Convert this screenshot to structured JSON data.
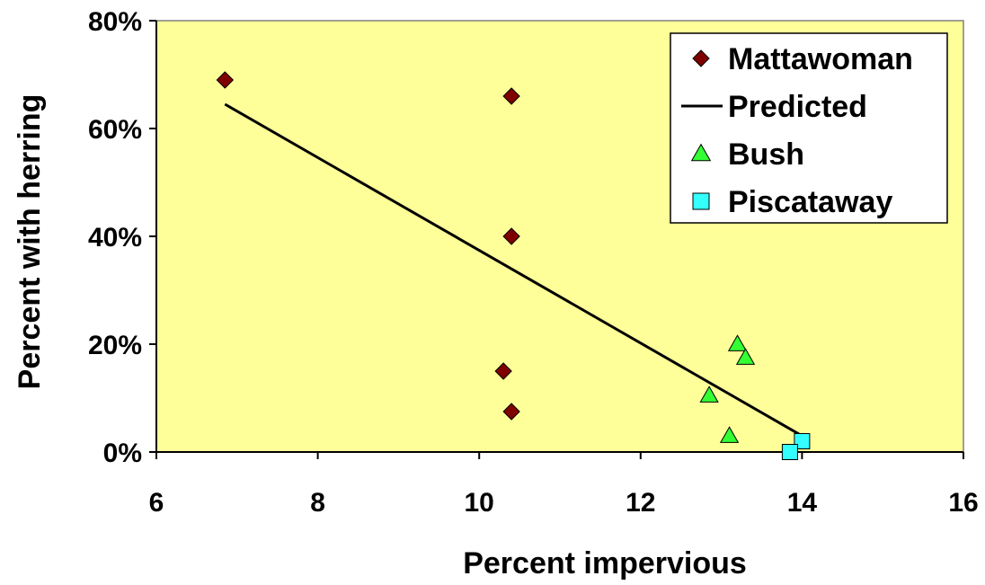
{
  "chart_data": {
    "type": "scatter",
    "title": "",
    "xlabel": "Percent impervious",
    "ylabel": "Percent with herring",
    "xlim": [
      6,
      16
    ],
    "ylim": [
      0,
      0.8
    ],
    "x_ticks": [
      6,
      8,
      10,
      12,
      14,
      16
    ],
    "y_ticks": [
      0,
      0.2,
      0.4,
      0.6,
      0.8
    ],
    "x_tick_labels": [
      "6",
      "8",
      "10",
      "12",
      "14",
      "16"
    ],
    "y_tick_labels": [
      "0%",
      "20%",
      "40%",
      "60%",
      "80%"
    ],
    "grid": false,
    "legend_position": "top-right",
    "plot_background": "#FFFF99",
    "series": [
      {
        "name": "Mattawoman",
        "marker": "diamond",
        "color": "#800000",
        "points": [
          {
            "x": 6.85,
            "y": 0.69
          },
          {
            "x": 10.4,
            "y": 0.66
          },
          {
            "x": 10.4,
            "y": 0.4
          },
          {
            "x": 10.3,
            "y": 0.15
          },
          {
            "x": 10.4,
            "y": 0.075
          }
        ]
      },
      {
        "name": "Predicted",
        "marker": "line",
        "color": "#000000",
        "points": [
          {
            "x": 6.85,
            "y": 0.645
          },
          {
            "x": 14.0,
            "y": 0.03
          }
        ]
      },
      {
        "name": "Bush",
        "marker": "triangle",
        "color": "#33FF33",
        "points": [
          {
            "x": 13.2,
            "y": 0.2
          },
          {
            "x": 13.3,
            "y": 0.175
          },
          {
            "x": 12.85,
            "y": 0.105
          },
          {
            "x": 13.1,
            "y": 0.03
          }
        ]
      },
      {
        "name": "Piscataway",
        "marker": "square",
        "color": "#33FFFF",
        "points": [
          {
            "x": 14.0,
            "y": 0.02
          },
          {
            "x": 13.85,
            "y": 0.0
          }
        ]
      }
    ]
  }
}
